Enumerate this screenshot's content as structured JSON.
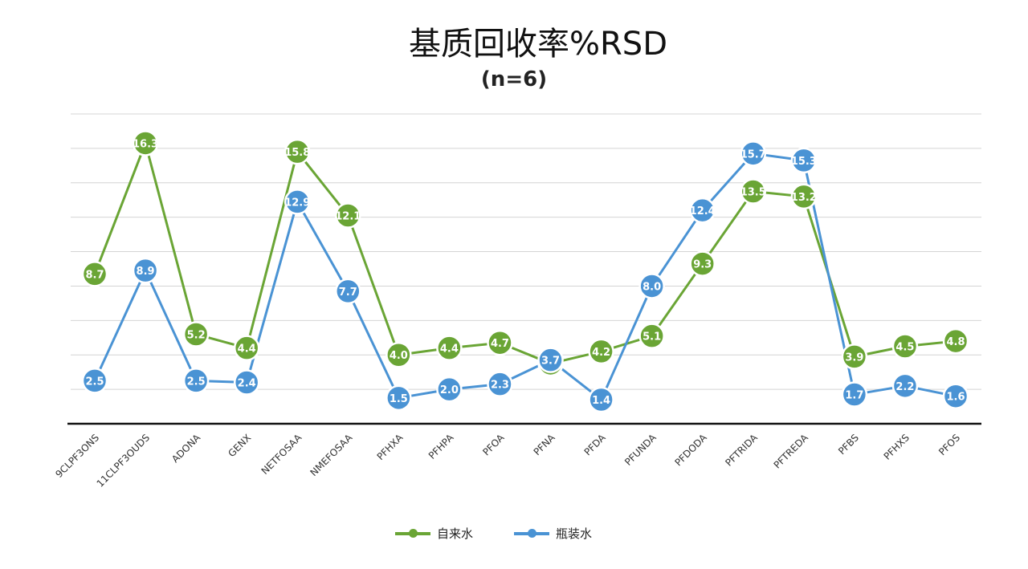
{
  "chart_data": {
    "type": "line",
    "title": "基质回收率%RSD",
    "subtitle": "(n=6)",
    "categories": [
      "9CLPF3ONS",
      "11CLPF3OUDS",
      "ADONA",
      "GENX",
      "NETFOSAA",
      "NMEFOSAA",
      "PFHXA",
      "PFHPA",
      "PFOA",
      "PFNA",
      "PFDA",
      "PFUNDA",
      "PFDODA",
      "PFTRIDA",
      "PFTREDA",
      "PFBS",
      "PFHXS",
      "PFOS"
    ],
    "series": [
      {
        "name": "自来水",
        "color": "#6aa535",
        "values": [
          8.7,
          16.3,
          5.2,
          4.4,
          15.8,
          12.1,
          4.0,
          4.4,
          4.7,
          3.5,
          4.2,
          5.1,
          9.3,
          13.5,
          13.2,
          3.9,
          4.5,
          4.8
        ],
        "labels": [
          "8.7",
          "16.3",
          "5.2",
          "4.4",
          "15.8",
          "12.1",
          "4.0",
          "4.4",
          "4.7",
          "3.5",
          "4.2",
          "5.1",
          "9.3",
          "13.5",
          "13.2",
          "3.9",
          "4.5",
          "4.8"
        ]
      },
      {
        "name": "瓶装水",
        "color": "#4a93d4",
        "values": [
          2.5,
          8.9,
          2.5,
          2.4,
          12.9,
          7.7,
          1.5,
          2.0,
          2.3,
          3.7,
          1.4,
          8.0,
          12.4,
          15.7,
          15.3,
          1.7,
          2.2,
          1.6
        ],
        "labels": [
          "2.5",
          "8.9",
          "2.5",
          "2.4",
          "12.9",
          "7.7",
          "1.5",
          "2.0",
          "2.3",
          "3.7",
          "1.4",
          "8.0",
          "12.4",
          "15.7",
          "15.3",
          "1.7",
          "2.2",
          "1.6"
        ]
      }
    ],
    "ylim": [
      0,
      18
    ],
    "grid": true,
    "legend": "bottom"
  }
}
